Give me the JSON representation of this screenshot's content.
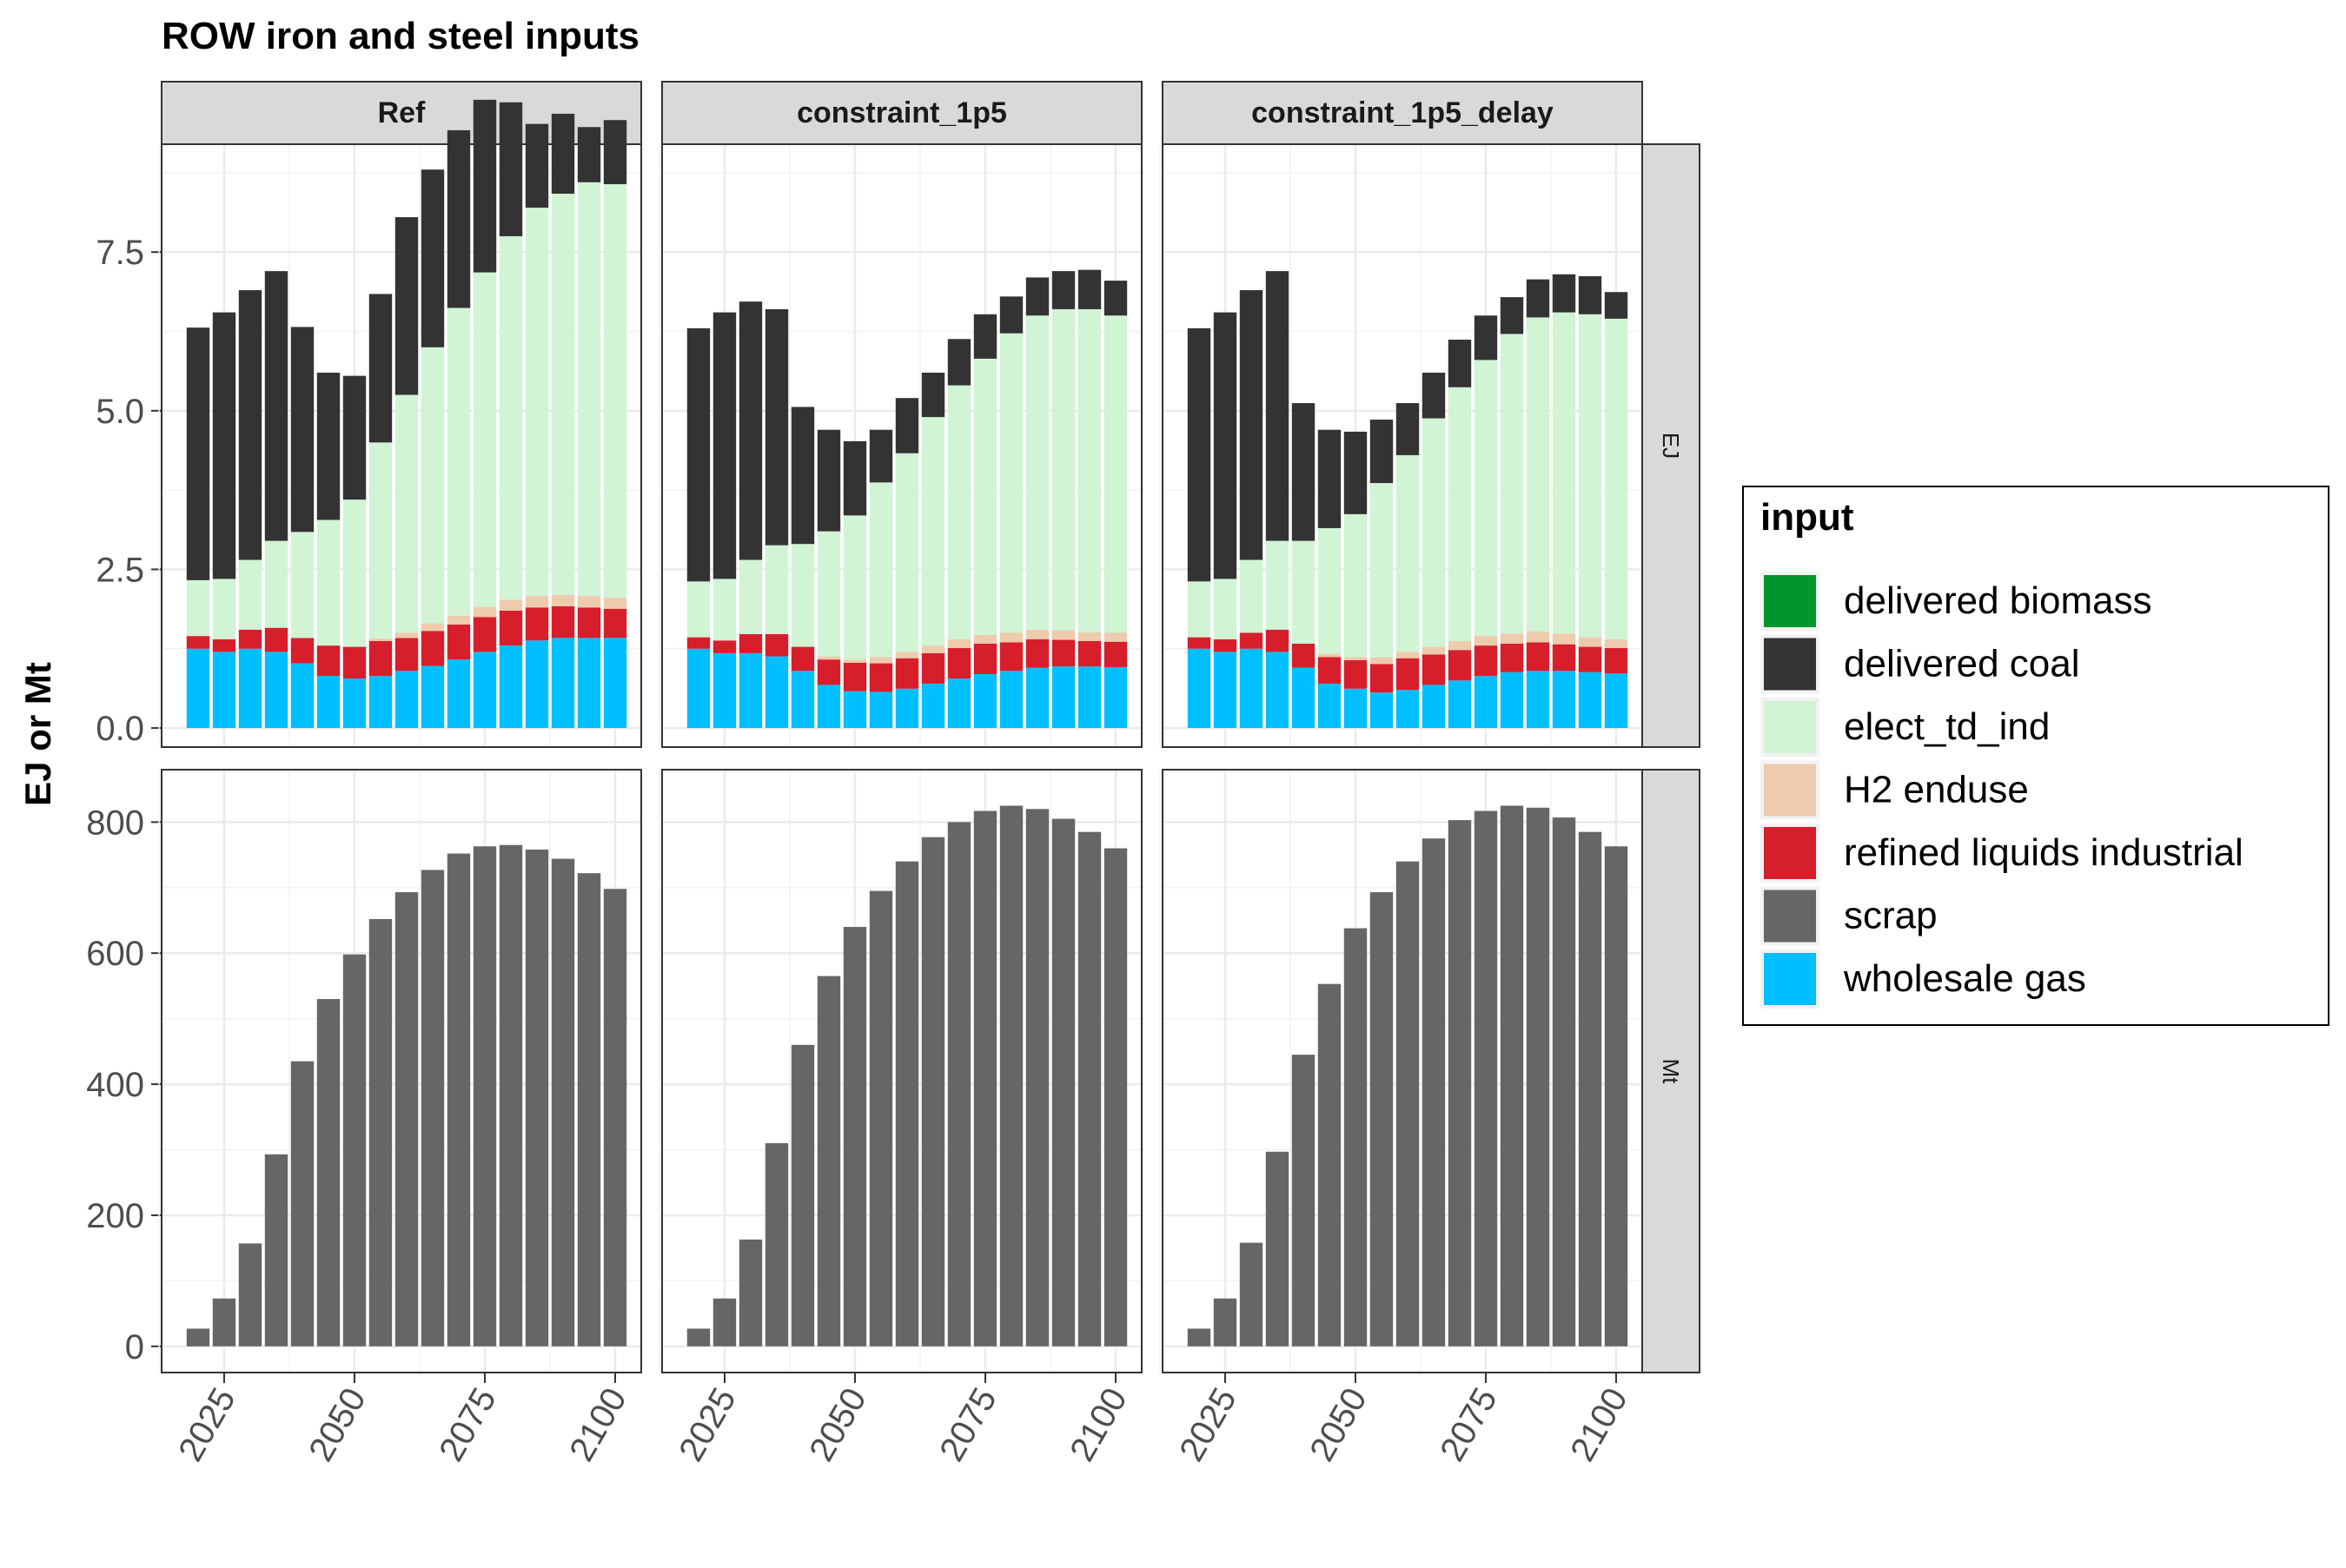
{
  "chart_data": {
    "type": "bar",
    "stacked": true,
    "faceted": true,
    "title": "ROW iron and steel inputs",
    "ylabel": "EJ or Mt",
    "xlabel": "",
    "legend": {
      "title": "input",
      "position": "right"
    },
    "x": [
      2020,
      2025,
      2030,
      2035,
      2040,
      2045,
      2050,
      2055,
      2060,
      2065,
      2070,
      2075,
      2080,
      2085,
      2090,
      2095,
      2100
    ],
    "x_ticks": [
      2025,
      2050,
      2075,
      2100
    ],
    "x_range": [
      2013,
      2105
    ],
    "columns": [
      "Ref",
      "constraint_1p5",
      "constraint_1p5_delay"
    ],
    "rows": [
      {
        "name": "EJ",
        "ylim": [
          -0.3,
          9.2
        ],
        "y_ticks": [
          0.0,
          2.5,
          5.0,
          7.5
        ],
        "y_tick_labels": [
          "0.0",
          "2.5",
          "5.0",
          "7.5"
        ]
      },
      {
        "name": "Mt",
        "ylim": [
          -40,
          880
        ],
        "y_ticks": [
          0,
          200,
          400,
          600,
          800
        ],
        "y_tick_labels": [
          "0",
          "200",
          "400",
          "600",
          "800"
        ]
      }
    ],
    "series": [
      {
        "name": "delivered biomass",
        "color": "#00962E"
      },
      {
        "name": "delivered coal",
        "color": "#333333"
      },
      {
        "name": "elect_td_ind",
        "color": "#D0F4D4"
      },
      {
        "name": "H2 enduse",
        "color": "#EECBAD"
      },
      {
        "name": "refined liquids industrial",
        "color": "#D71E2B"
      },
      {
        "name": "scrap",
        "color": "#666666"
      },
      {
        "name": "wholesale gas",
        "color": "#00BFFF"
      }
    ],
    "stack_order_bottom_to_top": [
      "wholesale gas",
      "refined liquids industrial",
      "H2 enduse",
      "elect_td_ind",
      "delivered coal",
      "delivered biomass"
    ],
    "panels": {
      "Ref": {
        "EJ": {
          "wholesale gas": [
            1.25,
            1.2,
            1.25,
            1.2,
            1.02,
            0.82,
            0.78,
            0.82,
            0.9,
            0.98,
            1.08,
            1.2,
            1.3,
            1.38,
            1.42,
            1.42,
            1.42
          ],
          "refined liquids industrial": [
            0.2,
            0.2,
            0.3,
            0.38,
            0.4,
            0.48,
            0.5,
            0.55,
            0.52,
            0.55,
            0.55,
            0.55,
            0.55,
            0.52,
            0.5,
            0.48,
            0.46
          ],
          "H2 enduse": [
            0.0,
            0.0,
            0.0,
            0.0,
            0.0,
            0.0,
            0.0,
            0.04,
            0.08,
            0.12,
            0.14,
            0.16,
            0.17,
            0.18,
            0.18,
            0.18,
            0.17
          ],
          "elect_td_ind": [
            0.88,
            0.95,
            1.1,
            1.37,
            1.67,
            1.98,
            2.32,
            3.09,
            3.75,
            4.35,
            4.85,
            5.27,
            5.73,
            6.12,
            6.32,
            6.52,
            6.52
          ],
          "delivered coal": [
            3.98,
            4.2,
            4.25,
            4.25,
            3.23,
            2.32,
            1.95,
            2.34,
            2.8,
            2.8,
            2.8,
            2.72,
            2.11,
            1.32,
            1.26,
            0.87,
            1.01
          ],
          "delivered biomass": [
            0.0,
            0.0,
            0.0,
            0.0,
            0.0,
            0.0,
            0.0,
            0.0,
            0.0,
            0.0,
            0.0,
            0.0,
            0.0,
            0.0,
            0.0,
            0.0,
            0.0
          ]
        },
        "Mt": {
          "scrap": [
            0,
            27,
            73,
            157,
            293,
            435,
            530,
            598,
            652,
            693,
            727,
            752,
            763,
            765,
            758,
            744,
            722,
            698
          ]
        }
      },
      "constraint_1p5": {
        "EJ": {
          "wholesale gas": [
            1.25,
            1.18,
            1.18,
            1.13,
            0.9,
            0.68,
            0.58,
            0.57,
            0.62,
            0.7,
            0.78,
            0.85,
            0.9,
            0.95,
            0.97,
            0.97,
            0.96
          ],
          "refined liquids industrial": [
            0.18,
            0.2,
            0.3,
            0.35,
            0.38,
            0.4,
            0.45,
            0.45,
            0.48,
            0.48,
            0.48,
            0.48,
            0.45,
            0.45,
            0.42,
            0.4,
            0.4
          ],
          "H2 enduse": [
            0.0,
            0.0,
            0.0,
            0.0,
            0.0,
            0.05,
            0.05,
            0.1,
            0.1,
            0.12,
            0.14,
            0.14,
            0.15,
            0.15,
            0.15,
            0.14,
            0.14
          ],
          "elect_td_ind": [
            0.88,
            0.97,
            1.17,
            1.4,
            1.62,
            1.97,
            2.27,
            2.75,
            3.13,
            3.6,
            4.0,
            4.35,
            4.72,
            4.95,
            5.06,
            5.09,
            5.0
          ],
          "delivered coal": [
            3.99,
            4.2,
            4.07,
            3.72,
            2.16,
            1.6,
            1.17,
            0.83,
            0.87,
            0.7,
            0.73,
            0.7,
            0.58,
            0.6,
            0.6,
            0.62,
            0.55
          ],
          "delivered biomass": [
            0.0,
            0.0,
            0.0,
            0.0,
            0.0,
            0.0,
            0.0,
            0.0,
            0.0,
            0.0,
            0.0,
            0.0,
            0.0,
            0.0,
            0.0,
            0.0,
            0.0
          ]
        },
        "Mt": {
          "scrap": [
            0,
            27,
            73,
            163,
            310,
            460,
            565,
            640,
            695,
            740,
            777,
            800,
            817,
            825,
            820,
            805,
            785,
            760
          ]
        }
      },
      "constraint_1p5_delay": {
        "EJ": {
          "wholesale gas": [
            1.25,
            1.2,
            1.25,
            1.2,
            0.95,
            0.7,
            0.62,
            0.56,
            0.6,
            0.68,
            0.75,
            0.82,
            0.88,
            0.9,
            0.9,
            0.88,
            0.86
          ],
          "refined liquids industrial": [
            0.18,
            0.2,
            0.25,
            0.35,
            0.38,
            0.42,
            0.45,
            0.45,
            0.5,
            0.48,
            0.48,
            0.48,
            0.45,
            0.45,
            0.42,
            0.4,
            0.4
          ],
          "H2 enduse": [
            0.0,
            0.0,
            0.0,
            0.0,
            0.0,
            0.05,
            0.05,
            0.1,
            0.1,
            0.12,
            0.14,
            0.15,
            0.16,
            0.17,
            0.17,
            0.15,
            0.14
          ],
          "elect_td_ind": [
            0.88,
            0.95,
            1.15,
            1.4,
            1.62,
            1.98,
            2.25,
            2.75,
            3.1,
            3.6,
            4.0,
            4.35,
            4.72,
            4.95,
            5.06,
            5.09,
            5.05
          ],
          "delivered coal": [
            3.99,
            4.2,
            4.25,
            4.25,
            2.17,
            1.55,
            1.3,
            1.0,
            0.82,
            0.72,
            0.75,
            0.7,
            0.58,
            0.6,
            0.6,
            0.6,
            0.42
          ],
          "delivered biomass": [
            0.0,
            0.0,
            0.0,
            0.0,
            0.0,
            0.0,
            0.0,
            0.0,
            0.0,
            0.0,
            0.0,
            0.0,
            0.0,
            0.0,
            0.0,
            0.0,
            0.0
          ]
        },
        "Mt": {
          "scrap": [
            0,
            27,
            73,
            158,
            297,
            445,
            553,
            638,
            693,
            740,
            775,
            803,
            817,
            825,
            822,
            807,
            785,
            763
          ]
        }
      }
    },
    "scrap_x": [
      2015,
      2020,
      2025,
      2030,
      2035,
      2040,
      2045,
      2050,
      2055,
      2060,
      2065,
      2070,
      2075,
      2080,
      2085,
      2090,
      2095,
      2100
    ]
  }
}
